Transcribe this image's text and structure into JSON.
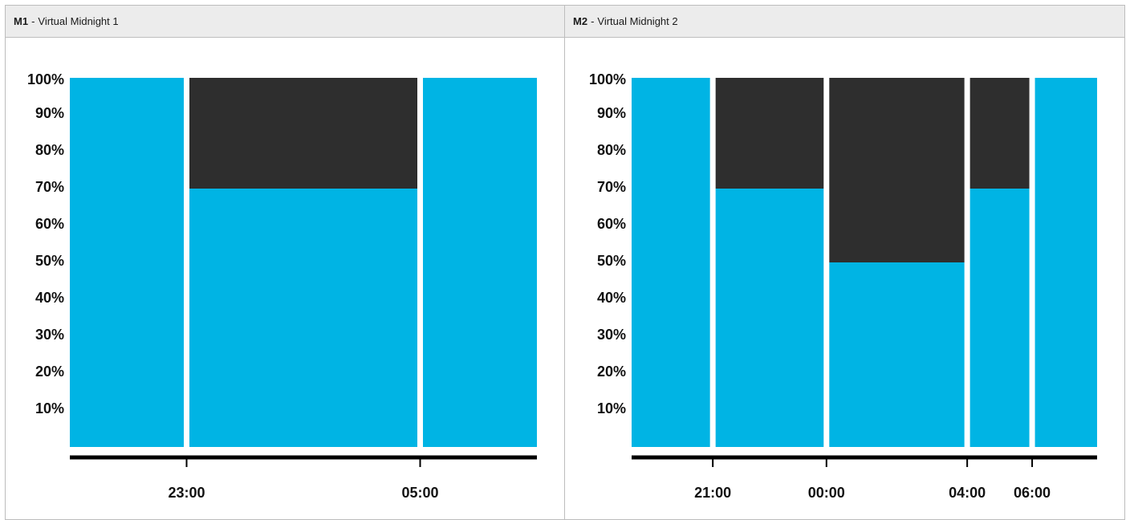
{
  "panels": [
    {
      "code": "M1",
      "title": "Virtual Midnight 1"
    },
    {
      "code": "M2",
      "title": "Virtual Midnight 2"
    }
  ],
  "colors": {
    "on": "#00b4e4",
    "off": "#2e2e2e",
    "axis": "#000000"
  },
  "chart_data": [
    {
      "type": "bar",
      "title": "M1 - Virtual Midnight 1",
      "y_ticks": [
        "100%",
        "90%",
        "80%",
        "70%",
        "60%",
        "50%",
        "40%",
        "30%",
        "20%",
        "10%"
      ],
      "ylim": [
        0,
        100
      ],
      "x_ticks": [
        "23:00",
        "05:00"
      ],
      "segments": [
        {
          "start_rel": 0,
          "end_rel": 3,
          "level": 100
        },
        {
          "start_rel": 3,
          "end_rel": 9,
          "level": 70
        },
        {
          "start_rel": 9,
          "end_rel": 12,
          "level": 100
        }
      ],
      "x_tick_rel": [
        3,
        9
      ],
      "x_total": 12,
      "grid": false
    },
    {
      "type": "bar",
      "title": "M2 - Virtual Midnight 2",
      "y_ticks": [
        "100%",
        "90%",
        "80%",
        "70%",
        "60%",
        "50%",
        "40%",
        "30%",
        "20%",
        "10%"
      ],
      "ylim": [
        0,
        100
      ],
      "x_ticks": [
        "21:00",
        "00:00",
        "04:00",
        "06:00"
      ],
      "segments": [
        {
          "start_rel": 0,
          "end_rel": 1.5,
          "level": 100
        },
        {
          "start_rel": 1.5,
          "end_rel": 3.6,
          "level": 70
        },
        {
          "start_rel": 3.6,
          "end_rel": 6.2,
          "level": 50
        },
        {
          "start_rel": 6.2,
          "end_rel": 7.4,
          "level": 70
        },
        {
          "start_rel": 7.4,
          "end_rel": 8.6,
          "level": 100
        }
      ],
      "x_tick_rel": [
        1.5,
        3.6,
        6.2,
        7.4
      ],
      "x_total": 8.6,
      "grid": false
    }
  ]
}
